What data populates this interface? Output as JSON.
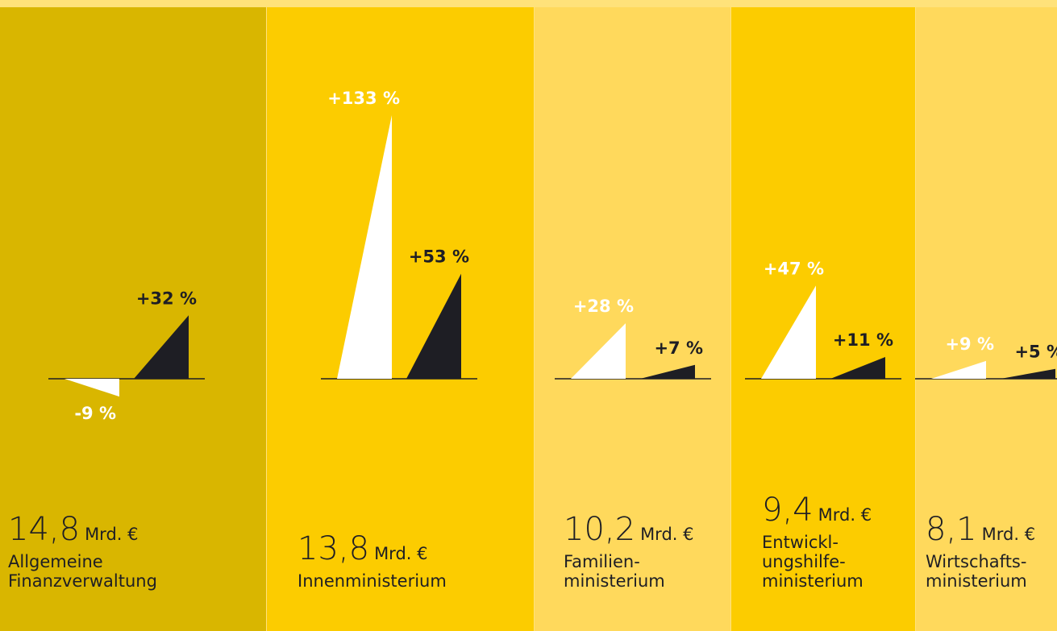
{
  "chart_data": {
    "type": "triangle",
    "categories": [
      "Allgemeine\nFinanzverwaltung",
      "Innenministerium",
      "Familien-\nministerium",
      "Entwickl-\nungshilfe-\nministerium",
      "Wirtschafts-\nministerium"
    ],
    "amounts": [
      14.8,
      13.8,
      10.2,
      9.4,
      8.1
    ],
    "amount_labels": [
      "14,8",
      "13,8",
      "10,2",
      "9,4",
      "8,1"
    ],
    "unit": "Mrd. €",
    "panel_colors": [
      "#d9b600",
      "#fccc00",
      "#ffd95c",
      "#fccc00",
      "#ffd95c"
    ],
    "series": [
      {
        "color": "#ffffff",
        "values": [
          -9,
          133,
          28,
          47,
          9
        ],
        "value_labels": [
          "-9 %",
          "+133 %",
          "+28 %",
          "+47 %",
          "+9 %"
        ]
      },
      {
        "color": "#1e1e24",
        "values": [
          32,
          53,
          7,
          11,
          5
        ],
        "value_labels": [
          "+32 %",
          "+53 %",
          "+7 %",
          "+11 %",
          "+5 %"
        ]
      }
    ]
  }
}
